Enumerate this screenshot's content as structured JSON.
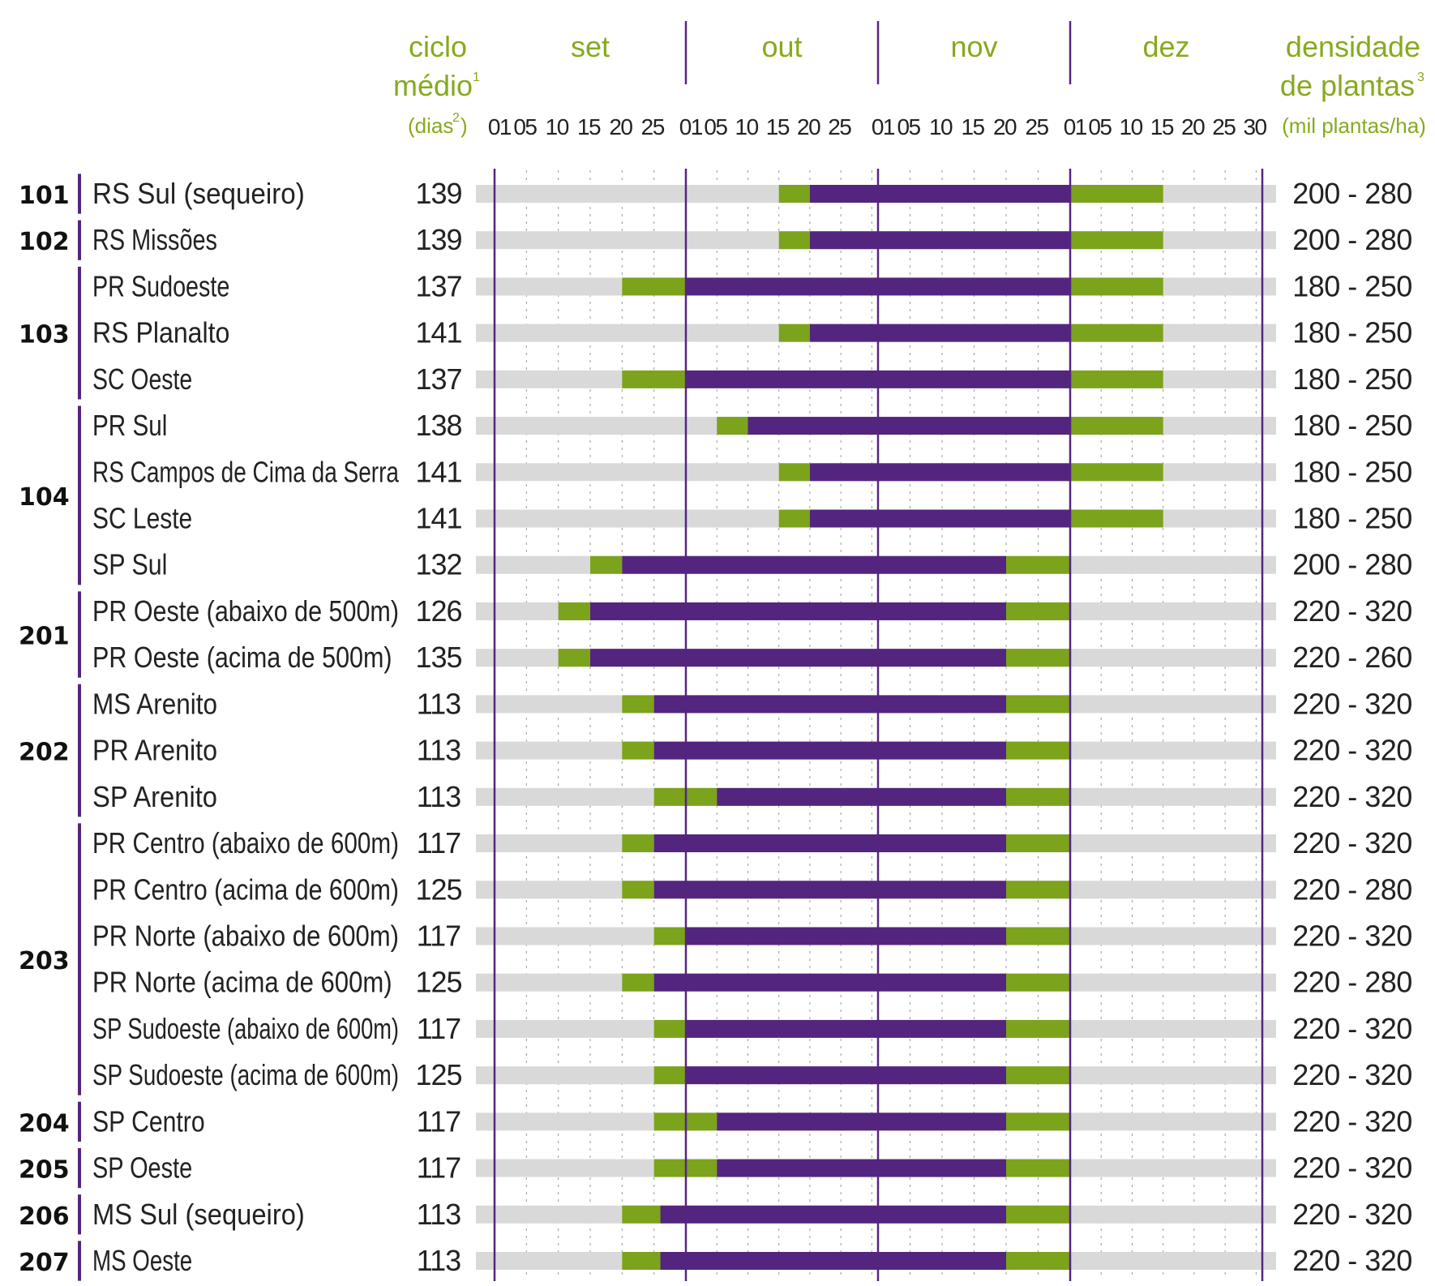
{
  "chart_data": {
    "type": "gantt",
    "headers": {
      "cycle": [
        "ciclo",
        "médio",
        "(dias",
        "2",
        ")"
      ],
      "cycle_sup": "1",
      "months": [
        "set",
        "out",
        "nov",
        "dez"
      ],
      "density": [
        "densidade",
        "de plantas",
        "(mil plantas/ha)"
      ],
      "density_sup": "3"
    },
    "day_ticks": [
      [
        "01",
        "05",
        "10",
        "15",
        "20",
        "25"
      ],
      [
        "01",
        "05",
        "10",
        "15",
        "20",
        "25"
      ],
      [
        "01",
        "05",
        "10",
        "15",
        "20",
        "25"
      ],
      [
        "01",
        "05",
        "10",
        "15",
        "20",
        "25",
        "30"
      ]
    ],
    "month_lengths": [
      30,
      31,
      30,
      31
    ],
    "colors": {
      "background": "#d9d9d9",
      "optimal": "#54257f",
      "tolerated": "#7ba31c",
      "grid": "#54257f"
    },
    "groups": [
      {
        "code": "101",
        "rows": [
          0,
          0
        ]
      },
      {
        "code": "102",
        "rows": [
          1,
          1
        ]
      },
      {
        "code": "103",
        "rows": [
          2,
          4
        ]
      },
      {
        "code": "104",
        "rows": [
          5,
          8
        ]
      },
      {
        "code": "201",
        "rows": [
          9,
          10
        ]
      },
      {
        "code": "202",
        "rows": [
          11,
          13
        ]
      },
      {
        "code": "203",
        "rows": [
          14,
          19
        ]
      },
      {
        "code": "204",
        "rows": [
          20,
          20
        ]
      },
      {
        "code": "205",
        "rows": [
          21,
          21
        ]
      },
      {
        "code": "206",
        "rows": [
          22,
          22
        ]
      },
      {
        "code": "207",
        "rows": [
          23,
          23
        ]
      }
    ],
    "rows": [
      {
        "region": "RS Sul (sequeiro)",
        "cycle": "139",
        "density": "200 - 280",
        "green1": [
          "2024-10-16",
          "2024-10-20"
        ],
        "purple": [
          "2024-10-21",
          "2024-11-30"
        ],
        "green2": [
          "2024-12-01",
          "2024-12-15"
        ]
      },
      {
        "region": "RS Missões",
        "cycle": "139",
        "density": "200 - 280",
        "green1": [
          "2024-10-16",
          "2024-10-20"
        ],
        "purple": [
          "2024-10-21",
          "2024-11-30"
        ],
        "green2": [
          "2024-12-01",
          "2024-12-15"
        ]
      },
      {
        "region": "PR Sudoeste",
        "cycle": "137",
        "density": "180 - 250",
        "green1": [
          "2024-09-21",
          "2024-09-30"
        ],
        "purple": [
          "2024-10-01",
          "2024-11-30"
        ],
        "green2": [
          "2024-12-01",
          "2024-12-15"
        ]
      },
      {
        "region": "RS Planalto",
        "cycle": "141",
        "density": "180 - 250",
        "green1": [
          "2024-10-16",
          "2024-10-20"
        ],
        "purple": [
          "2024-10-21",
          "2024-11-30"
        ],
        "green2": [
          "2024-12-01",
          "2024-12-15"
        ]
      },
      {
        "region": "SC Oeste",
        "cycle": "137",
        "density": "180 - 250",
        "green1": [
          "2024-09-21",
          "2024-09-30"
        ],
        "purple": [
          "2024-10-01",
          "2024-11-30"
        ],
        "green2": [
          "2024-12-01",
          "2024-12-15"
        ]
      },
      {
        "region": "PR Sul",
        "cycle": "138",
        "density": "180 - 250",
        "green1": [
          "2024-10-06",
          "2024-10-10"
        ],
        "purple": [
          "2024-10-11",
          "2024-11-30"
        ],
        "green2": [
          "2024-12-01",
          "2024-12-15"
        ]
      },
      {
        "region": "RS Campos de Cima da Serra",
        "cycle": "141",
        "density": "180 - 250",
        "green1": [
          "2024-10-16",
          "2024-10-20"
        ],
        "purple": [
          "2024-10-21",
          "2024-11-30"
        ],
        "green2": [
          "2024-12-01",
          "2024-12-15"
        ]
      },
      {
        "region": "SC Leste",
        "cycle": "141",
        "density": "180 - 250",
        "green1": [
          "2024-10-16",
          "2024-10-20"
        ],
        "purple": [
          "2024-10-21",
          "2024-11-30"
        ],
        "green2": [
          "2024-12-01",
          "2024-12-15"
        ]
      },
      {
        "region": "SP Sul",
        "cycle": "132",
        "density": "200 - 280",
        "green1": [
          "2024-09-16",
          "2024-09-20"
        ],
        "purple": [
          "2024-09-21",
          "2024-11-20"
        ],
        "green2": [
          "2024-11-21",
          "2024-11-30"
        ]
      },
      {
        "region": "PR Oeste (abaixo de 500m)",
        "cycle": "126",
        "density": "220 - 320",
        "green1": [
          "2024-09-11",
          "2024-09-15"
        ],
        "purple": [
          "2024-09-16",
          "2024-11-20"
        ],
        "green2": [
          "2024-11-21",
          "2024-11-30"
        ]
      },
      {
        "region": "PR Oeste (acima de 500m)",
        "cycle": "135",
        "density": "220 - 260",
        "green1": [
          "2024-09-11",
          "2024-09-15"
        ],
        "purple": [
          "2024-09-16",
          "2024-11-20"
        ],
        "green2": [
          "2024-11-21",
          "2024-11-30"
        ]
      },
      {
        "region": "MS Arenito",
        "cycle": "113",
        "density": "220 - 320",
        "green1": [
          "2024-09-21",
          "2024-09-25"
        ],
        "purple": [
          "2024-09-26",
          "2024-11-20"
        ],
        "green2": [
          "2024-11-21",
          "2024-11-30"
        ]
      },
      {
        "region": "PR Arenito",
        "cycle": "113",
        "density": "220 - 320",
        "green1": [
          "2024-09-21",
          "2024-09-25"
        ],
        "purple": [
          "2024-09-26",
          "2024-11-20"
        ],
        "green2": [
          "2024-11-21",
          "2024-11-30"
        ]
      },
      {
        "region": "SP Arenito",
        "cycle": "113",
        "density": "220 - 320",
        "green1": [
          "2024-09-26",
          "2024-10-05"
        ],
        "purple": [
          "2024-10-06",
          "2024-11-20"
        ],
        "green2": [
          "2024-11-21",
          "2024-11-30"
        ]
      },
      {
        "region": "PR Centro (abaixo de 600m)",
        "cycle": "117",
        "density": "220 - 320",
        "green1": [
          "2024-09-21",
          "2024-09-25"
        ],
        "purple": [
          "2024-09-26",
          "2024-11-20"
        ],
        "green2": [
          "2024-11-21",
          "2024-11-30"
        ]
      },
      {
        "region": "PR Centro (acima de 600m)",
        "cycle": "125",
        "density": "220 - 280",
        "green1": [
          "2024-09-21",
          "2024-09-25"
        ],
        "purple": [
          "2024-09-26",
          "2024-11-20"
        ],
        "green2": [
          "2024-11-21",
          "2024-11-30"
        ]
      },
      {
        "region": "PR Norte (abaixo de 600m)",
        "cycle": "117",
        "density": "220 - 320",
        "green1": [
          "2024-09-26",
          "2024-09-30"
        ],
        "purple": [
          "2024-10-01",
          "2024-11-20"
        ],
        "green2": [
          "2024-11-21",
          "2024-11-30"
        ]
      },
      {
        "region": "PR Norte (acima de 600m)",
        "cycle": "125",
        "density": "220 - 280",
        "green1": [
          "2024-09-21",
          "2024-09-25"
        ],
        "purple": [
          "2024-09-26",
          "2024-11-20"
        ],
        "green2": [
          "2024-11-21",
          "2024-11-30"
        ]
      },
      {
        "region": "SP Sudoeste (abaixo de 600m)",
        "cycle": "117",
        "density": "220 - 320",
        "green1": [
          "2024-09-26",
          "2024-09-30"
        ],
        "purple": [
          "2024-10-01",
          "2024-11-20"
        ],
        "green2": [
          "2024-11-21",
          "2024-11-30"
        ]
      },
      {
        "region": "SP Sudoeste (acima de 600m)",
        "cycle": "125",
        "density": "220 - 320",
        "green1": [
          "2024-09-26",
          "2024-09-30"
        ],
        "purple": [
          "2024-10-01",
          "2024-11-20"
        ],
        "green2": [
          "2024-11-21",
          "2024-11-30"
        ]
      },
      {
        "region": "SP Centro",
        "cycle": "117",
        "density": "220 - 320",
        "green1": [
          "2024-09-26",
          "2024-10-05"
        ],
        "purple": [
          "2024-10-06",
          "2024-11-20"
        ],
        "green2": [
          "2024-11-21",
          "2024-11-30"
        ]
      },
      {
        "region": "SP Oeste",
        "cycle": "117",
        "density": "220 - 320",
        "green1": [
          "2024-09-26",
          "2024-10-05"
        ],
        "purple": [
          "2024-10-06",
          "2024-11-20"
        ],
        "green2": [
          "2024-11-21",
          "2024-11-30"
        ]
      },
      {
        "region": "MS Sul (sequeiro)",
        "cycle": "113",
        "density": "220 - 320",
        "green1": [
          "2024-09-21",
          "2024-09-26"
        ],
        "purple": [
          "2024-09-27",
          "2024-11-20"
        ],
        "green2": [
          "2024-11-21",
          "2024-11-30"
        ]
      },
      {
        "region": "MS Oeste",
        "cycle": "113",
        "density": "220 - 320",
        "green1": [
          "2024-09-21",
          "2024-09-26"
        ],
        "purple": [
          "2024-09-27",
          "2024-11-20"
        ],
        "green2": [
          "2024-11-21",
          "2024-11-30"
        ]
      }
    ]
  }
}
